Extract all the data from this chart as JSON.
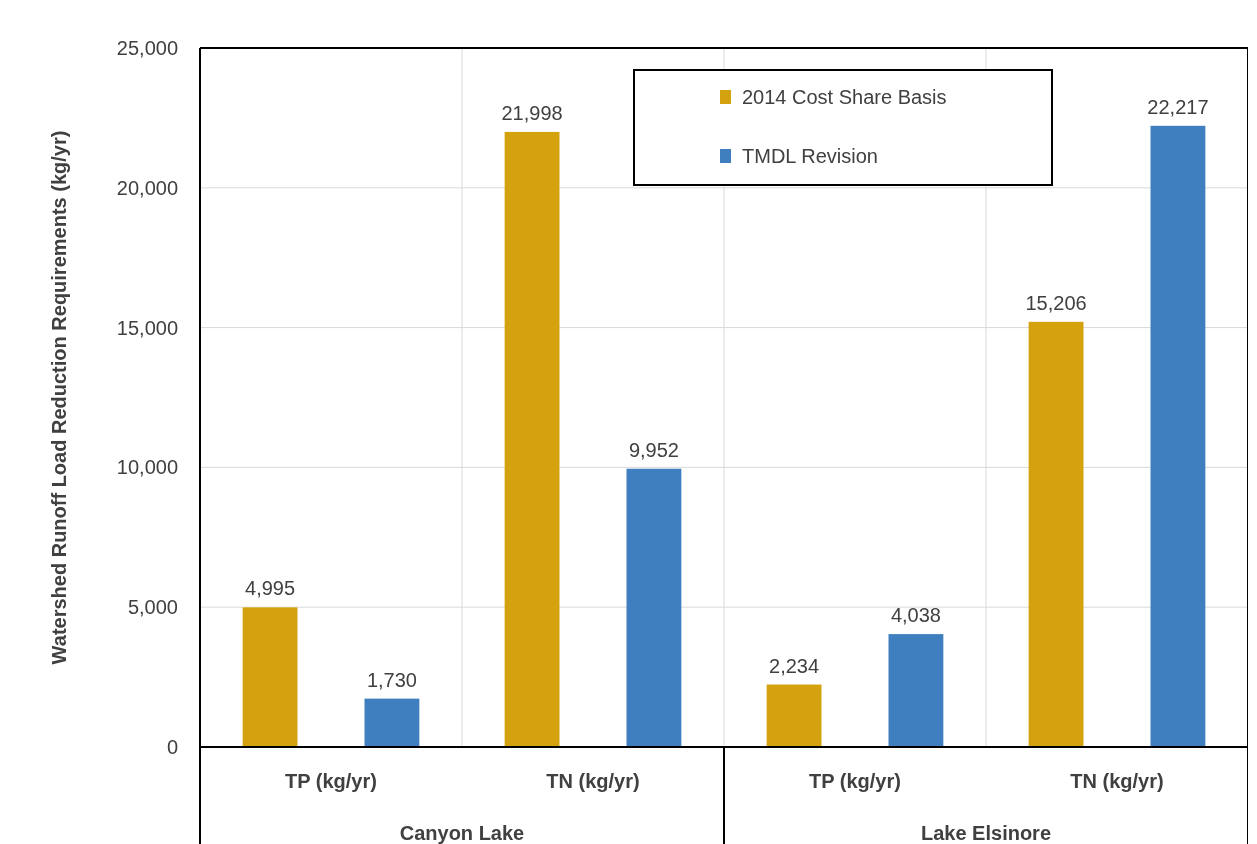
{
  "chart_data": {
    "type": "bar",
    "ylabel": "Watershed Runoff Load Reduction Requirements (kg/yr)",
    "categories": [
      "TP (kg/yr)",
      "TN (kg/yr)",
      "TP (kg/yr)",
      "TN (kg/yr)"
    ],
    "series": [
      {
        "name": "2014 Cost Share Basis",
        "color": "#d4a20e",
        "values": [
          4995,
          21998,
          2234,
          15206
        ],
        "value_labels": [
          "4,995",
          "21,998",
          "2,234",
          "15,206"
        ]
      },
      {
        "name": "TMDL Revision",
        "color": "#3f7fc0",
        "values": [
          1730,
          9952,
          4038,
          22217
        ],
        "value_labels": [
          "1,730",
          "9,952",
          "4,038",
          "22,217"
        ]
      }
    ],
    "annotations": [
      "Canyon Lake",
      "Lake Elsinore"
    ],
    "ylim": [
      0,
      25000
    ],
    "yticks": [
      {
        "value": 0,
        "label": "0"
      },
      {
        "value": 5000,
        "label": "5,000"
      },
      {
        "value": 10000,
        "label": "10,000"
      },
      {
        "value": 15000,
        "label": "15,000"
      },
      {
        "value": 20000,
        "label": "20,000"
      },
      {
        "value": 25000,
        "label": "25,000"
      }
    ],
    "grid": true,
    "legend": "top right"
  }
}
